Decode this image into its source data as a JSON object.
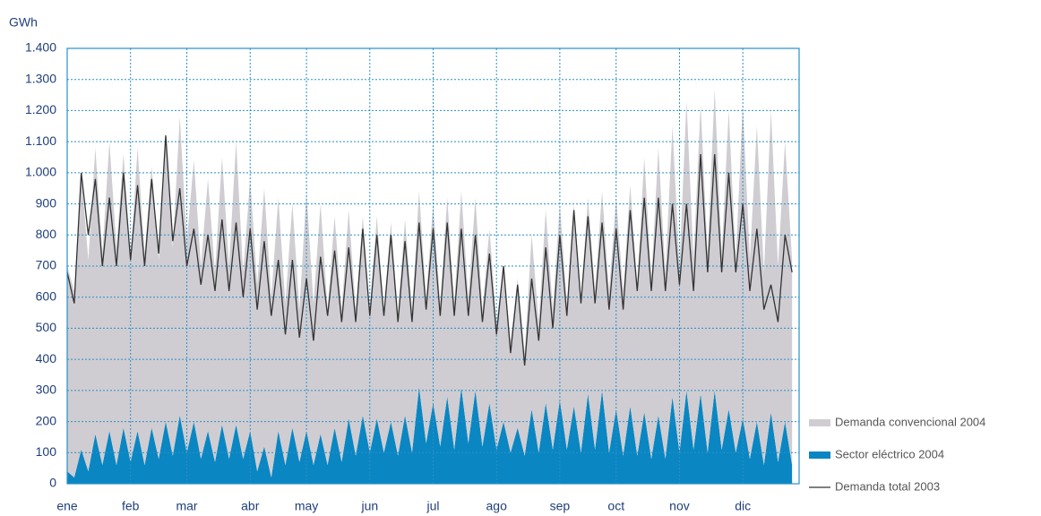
{
  "chart_data": {
    "type": "stacked-area-line",
    "y_label": "GWh",
    "categories": [
      "ene",
      null,
      null,
      null,
      null,
      null,
      null,
      null,
      null,
      "feb",
      null,
      null,
      null,
      null,
      null,
      null,
      null,
      "mar",
      null,
      null,
      null,
      null,
      null,
      null,
      null,
      null,
      "abr",
      null,
      null,
      null,
      null,
      null,
      null,
      null,
      "may",
      null,
      null,
      null,
      null,
      null,
      null,
      null,
      null,
      "jun",
      null,
      null,
      null,
      null,
      null,
      null,
      null,
      null,
      "jul",
      null,
      null,
      null,
      null,
      null,
      null,
      null,
      null,
      "ago",
      null,
      null,
      null,
      null,
      null,
      null,
      null,
      null,
      "sep",
      null,
      null,
      null,
      null,
      null,
      null,
      null,
      "oct",
      null,
      null,
      null,
      null,
      null,
      null,
      null,
      null,
      "nov",
      null,
      null,
      null,
      null,
      null,
      null,
      null,
      null,
      "dic",
      null,
      null,
      null,
      null,
      null,
      null,
      null
    ],
    "series": [
      {
        "name": "Sector eléctrico 2004",
        "kind": "area",
        "color": "#0a86c2",
        "values": [
          40,
          20,
          110,
          40,
          160,
          60,
          170,
          60,
          180,
          70,
          170,
          60,
          180,
          80,
          200,
          90,
          220,
          100,
          200,
          80,
          170,
          70,
          190,
          80,
          190,
          80,
          170,
          40,
          120,
          20,
          170,
          60,
          180,
          70,
          170,
          60,
          160,
          60,
          180,
          70,
          210,
          90,
          220,
          100,
          210,
          100,
          200,
          90,
          220,
          100,
          310,
          130,
          260,
          120,
          280,
          110,
          310,
          130,
          300,
          120,
          260,
          110,
          200,
          100,
          180,
          90,
          240,
          100,
          260,
          110,
          270,
          110,
          250,
          100,
          290,
          110,
          300,
          100,
          240,
          90,
          250,
          90,
          230,
          80,
          220,
          80,
          280,
          100,
          300,
          110,
          290,
          100,
          300,
          110,
          240,
          100,
          210,
          80,
          200,
          60,
          230,
          70,
          200,
          60
        ]
      },
      {
        "name": "Demanda convencional 2004",
        "kind": "area",
        "color": "#cfcdd2",
        "values": [
          660,
          600,
          890,
          680,
          920,
          680,
          930,
          700,
          880,
          650,
          910,
          680,
          840,
          640,
          900,
          670,
          960,
          680,
          840,
          620,
          810,
          610,
          860,
          620,
          910,
          600,
          810,
          600,
          830,
          580,
          750,
          520,
          720,
          490,
          770,
          520,
          740,
          500,
          680,
          490,
          670,
          470,
          640,
          460,
          650,
          460,
          640,
          460,
          630,
          460,
          630,
          470,
          640,
          460,
          640,
          470,
          630,
          470,
          620,
          440,
          560,
          410,
          500,
          360,
          480,
          330,
          560,
          420,
          620,
          450,
          630,
          470,
          650,
          500,
          630,
          510,
          640,
          520,
          680,
          530,
          710,
          550,
          820,
          580,
          860,
          600,
          870,
          600,
          930,
          610,
          930,
          640,
          970,
          630,
          960,
          620,
          1010,
          640,
          950,
          620,
          970,
          630,
          900,
          660
        ]
      },
      {
        "name": "Demanda total 2003",
        "kind": "line",
        "color": "#333333",
        "values": [
          680,
          580,
          1000,
          800,
          980,
          700,
          920,
          700,
          1000,
          720,
          960,
          700,
          980,
          740,
          1120,
          780,
          950,
          700,
          820,
          640,
          800,
          620,
          850,
          620,
          840,
          600,
          820,
          560,
          780,
          540,
          720,
          480,
          720,
          470,
          660,
          460,
          730,
          540,
          750,
          520,
          760,
          520,
          820,
          540,
          800,
          540,
          800,
          520,
          780,
          520,
          840,
          560,
          820,
          540,
          840,
          540,
          820,
          540,
          800,
          520,
          740,
          480,
          700,
          420,
          640,
          380,
          660,
          460,
          760,
          500,
          800,
          540,
          880,
          580,
          860,
          580,
          840,
          560,
          820,
          560,
          880,
          620,
          920,
          620,
          920,
          620,
          900,
          640,
          900,
          620,
          1060,
          680,
          1060,
          680,
          1000,
          680,
          900,
          620,
          820,
          560,
          640,
          520,
          800,
          680
        ]
      }
    ],
    "ylim": [
      0,
      1400
    ],
    "yticks": [
      0,
      100,
      200,
      300,
      400,
      500,
      600,
      700,
      800,
      900,
      {
        "value": 1000,
        "label": "1.000"
      },
      {
        "value": 1100,
        "label": "1.100"
      },
      {
        "value": 1200,
        "label": "1.200"
      },
      {
        "value": 1300,
        "label": "1.300"
      },
      {
        "value": 1400,
        "label": "1.400"
      }
    ],
    "grid": true,
    "legend": "right"
  }
}
